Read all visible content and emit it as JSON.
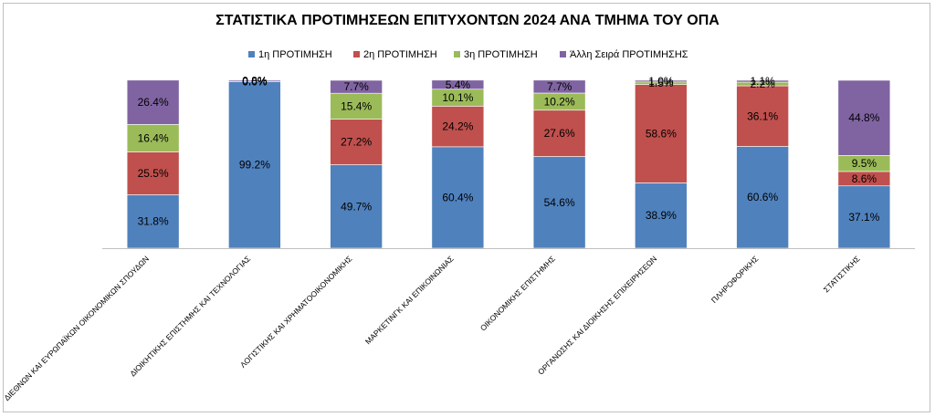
{
  "chart_data": {
    "type": "bar",
    "stacked": true,
    "title": "ΣΤΑΤΙΣΤΙΚΑ ΠΡΟΤΙΜΗΣΕΩΝ ΕΠΙΤΥΧΟΝΤΩΝ 2024 ΑΝΑ ΤΜΗΜΑ ΤΟΥ ΟΠΑ",
    "legend_position": "top",
    "grid": false,
    "ylim": [
      0,
      100
    ],
    "categories": [
      "ΔΙΕΘΝΩΝ ΚΑΙ ΕΥΡΩΠΑΪΚΩΝ ΟΙΚΟΝΟΜΙΚΩΝ ΣΠΟΥΔΩΝ",
      "ΔΙΟΙΚΗΤΙΚΗΣ ΕΠΙΣΤΗΜΗΣ ΚΑΙ ΤΕΧΝΟΛΟΓΙΑΣ",
      "ΛΟΓΙΣΤΙΚΗΣ ΚΑΙ ΧΡΗΜΑΤΟΟΙΚΟΝΟΜΙΚΗΣ",
      "ΜΑΡΚΕΤΙΝΓΚ ΚΑΙ ΕΠΙΚΟΙΝΩΝΙΑΣ",
      "ΟΙΚΟΝΟΜΙΚΗΣ ΕΠΙΣΤΗΜΗΣ",
      "ΟΡΓΑΝΩΣΗΣ ΚΑΙ ΔΙΟΙΚΗΣΗΣ ΕΠΙΧΕΙΡΗΣΕΩΝ",
      "ΠΛΗΡΟΦΟΡΙΚΗΣ",
      "ΣΤΑΤΙΣΤΙΚΗΣ"
    ],
    "series": [
      {
        "name": "1η ΠΡΟΤΙΜΗΣΗ",
        "color": "#4f81bd",
        "values": [
          31.8,
          99.2,
          49.7,
          60.4,
          54.6,
          38.9,
          60.6,
          37.1
        ]
      },
      {
        "name": "2η ΠΡΟΤΙΜΗΣΗ",
        "color": "#c0504d",
        "values": [
          25.5,
          0.0,
          27.2,
          24.2,
          27.6,
          58.6,
          36.1,
          8.6
        ]
      },
      {
        "name": "3η ΠΡΟΤΙΜΗΣΗ",
        "color": "#9bbb59",
        "values": [
          16.4,
          0.0,
          15.4,
          10.1,
          10.2,
          1.5,
          2.2,
          9.5
        ]
      },
      {
        "name": "Άλλη Σειρά ΠΡΟΤΙΜΗΣΗΣ",
        "color": "#8064a2",
        "values": [
          26.4,
          0.8,
          7.7,
          5.4,
          7.7,
          1.0,
          1.1,
          44.8
        ]
      }
    ]
  }
}
